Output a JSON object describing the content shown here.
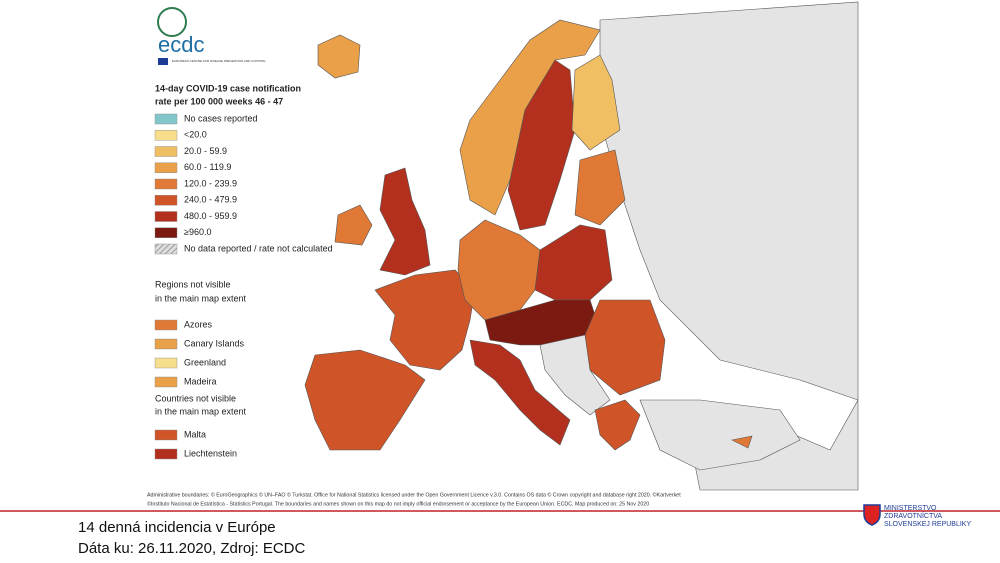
{
  "logo": {
    "text": "ecdc",
    "subtext": "EUROPEAN CENTRE FOR DISEASE PREVENTION AND CONTROL"
  },
  "legend": {
    "title_lines": [
      "14-day COVID-19 case notification",
      "rate per 100 000 weeks 46 - 47"
    ],
    "items": [
      {
        "label": "No cases reported",
        "color": "#82c6cc"
      },
      {
        "label": "<20.0",
        "color": "#f6de8c"
      },
      {
        "label": "20.0 - 59.9",
        "color": "#f0be63"
      },
      {
        "label": "60.0 - 119.9",
        "color": "#e9a049"
      },
      {
        "label": "120.0 - 239.9",
        "color": "#e07935"
      },
      {
        "label": "240.0 - 479.9",
        "color": "#cf5427"
      },
      {
        "label": "480.0 - 959.9",
        "color": "#b3301e"
      },
      {
        "label": "≥960.0",
        "color": "#7a1a10"
      },
      {
        "label": "No data reported / rate not calculated",
        "color": "#a8a8a8",
        "hatch": true
      }
    ],
    "regions_heading": [
      "Regions not visible",
      "in the main map extent"
    ],
    "regions": [
      {
        "label": "Azores",
        "color": "#e07935"
      },
      {
        "label": "Canary Islands",
        "color": "#e9a049"
      },
      {
        "label": "Greenland",
        "color": "#f6de8c"
      },
      {
        "label": "Madeira",
        "color": "#e9a049"
      }
    ],
    "countries_heading": [
      "Countries not visible",
      "in the main map extent"
    ],
    "countries": [
      {
        "label": "Malta",
        "color": "#cf5427"
      },
      {
        "label": "Liechtenstein",
        "color": "#b3301e"
      }
    ]
  },
  "footnote": [
    "Administrative boundaries: © EuroGeographics © UN–FAO © Turkstat. Office for National Statistics licensed under the Open Government Licence v.3.0. Contains OS data © Crown copyright and database right 2020. ©Kartverket",
    "©Instituto Nacional de Estatística - Statistics Portugal. The boundaries and names shown on this map do not imply official endorsement or acceptance by the European Union. ECDC. Map produced on: 25 Nov 2020"
  ],
  "caption": [
    "14 denná incidencia v Európe",
    "Dáta ku: 26.11.2020, Zdroj: ECDC"
  ],
  "ministry": [
    "MINISTERSTVO",
    "ZDRAVOTNÍCTVA",
    "SLOVENSKEJ REPUBLIKY"
  ]
}
